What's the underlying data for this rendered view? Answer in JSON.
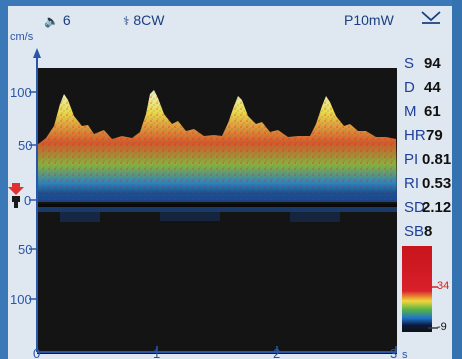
{
  "status_bar": {
    "speaker_volume": "6",
    "probe_label": "8CW",
    "power_label": "P10mW"
  },
  "axis": {
    "unit_label": "cm/s",
    "y_ticks_top": [
      "100",
      "50",
      "0"
    ],
    "y_ticks_bottom": [
      "50",
      "100"
    ],
    "x_ticks": [
      "0",
      "1",
      "2",
      "3"
    ],
    "x_unit": "s"
  },
  "metrics": [
    {
      "label": "S",
      "value": "94"
    },
    {
      "label": "D",
      "value": "44"
    },
    {
      "label": "M",
      "value": "61"
    },
    {
      "label": "HR",
      "value": "79"
    },
    {
      "label": "PI",
      "value": "0.81"
    },
    {
      "label": "RI",
      "value": "0.53"
    },
    {
      "label": "SD",
      "value": "2.12"
    },
    {
      "label": "SB",
      "value": "8"
    }
  ],
  "color_scale": {
    "max_label": "34",
    "min_label": "-9"
  },
  "colors": {
    "trace_background": "#141414",
    "axis": "#2a56a8",
    "baseline_marker": "#e03030"
  }
}
